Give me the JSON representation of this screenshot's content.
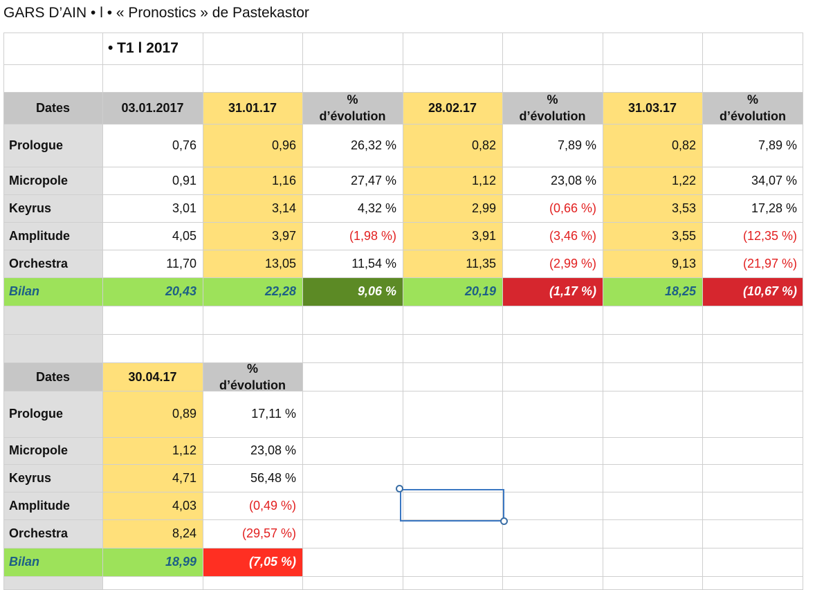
{
  "title": "GARS D’AIN • l • « Pronostics » de Pastekastor",
  "period": "• T1 l 2017",
  "table1": {
    "dates_label": "Dates",
    "headers": [
      "03.01.2017",
      "31.01.17",
      "% d’évolution",
      "28.02.17",
      "% d’évolution",
      "31.03.17",
      "% d’évolution"
    ],
    "rows": [
      {
        "name": "Prologue",
        "values": [
          "0,76",
          "0,96",
          "26,32 %",
          "0,82",
          "7,89 %",
          "0,82",
          "7,89 %"
        ]
      },
      {
        "name": "Micropole",
        "values": [
          "0,91",
          "1,16",
          "27,47 %",
          "1,12",
          "23,08 %",
          "1,22",
          "34,07 %"
        ]
      },
      {
        "name": "Keyrus",
        "values": [
          "3,01",
          "3,14",
          "4,32 %",
          "2,99",
          "(0,66 %)",
          "3,53",
          "17,28 %"
        ]
      },
      {
        "name": "Amplitude",
        "values": [
          "4,05",
          "3,97",
          "(1,98 %)",
          "3,91",
          "(3,46 %)",
          "3,55",
          "(12,35 %)"
        ]
      },
      {
        "name": "Orchestra",
        "values": [
          "11,70",
          "13,05",
          "11,54 %",
          "11,35",
          "(2,99 %)",
          "9,13",
          "(21,97 %)"
        ]
      }
    ],
    "bilan": {
      "name": "Bilan",
      "values": [
        "20,43",
        "22,28",
        "9,06 %",
        "20,19",
        "(1,17 %)",
        "18,25",
        "(10,67 %)"
      ]
    }
  },
  "table2": {
    "dates_label": "Dates",
    "headers": [
      "30.04.17",
      "% d’évolution"
    ],
    "rows": [
      {
        "name": "Prologue",
        "values": [
          "0,89",
          "17,11 %"
        ]
      },
      {
        "name": "Micropole",
        "values": [
          "1,12",
          "23,08 %"
        ]
      },
      {
        "name": "Keyrus",
        "values": [
          "4,71",
          "56,48 %"
        ]
      },
      {
        "name": "Amplitude",
        "values": [
          "4,03",
          "(0,49 %)"
        ]
      },
      {
        "name": "Orchestra",
        "values": [
          "8,24",
          "(29,57 %)"
        ]
      }
    ],
    "bilan": {
      "name": "Bilan",
      "values": [
        "18,99",
        "(7,05 %)"
      ]
    }
  },
  "colors": {
    "header_gray": "#c6c6c6",
    "date_yellow": "#ffe07a",
    "bilan_green": "#9de25a",
    "positive_dark_green": "#5c8a25",
    "negative_red": "#d6262e",
    "negative_bright_red": "#ff2f22",
    "negative_text": "#e21f1f",
    "bilan_text": "#1d5f86",
    "selection_blue": "#3a77c2"
  }
}
